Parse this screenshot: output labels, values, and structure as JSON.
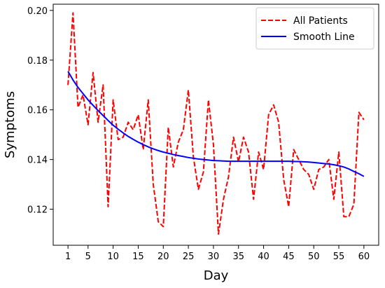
{
  "chart_data": {
    "type": "line",
    "title": "",
    "xlabel": "Day",
    "ylabel": "Symptoms",
    "xlim": [
      -1.95,
      62.95
    ],
    "ylim": [
      0.1055,
      0.2025
    ],
    "xticks": [
      1,
      5,
      10,
      15,
      20,
      25,
      30,
      35,
      40,
      45,
      50,
      55,
      60
    ],
    "yticks": [
      0.12,
      0.14,
      0.16,
      0.18,
      0.2
    ],
    "ytick_labels": [
      "0.12",
      "0.14",
      "0.16",
      "0.18",
      "0.20"
    ],
    "grid": false,
    "legend_position": "top-right",
    "series": [
      {
        "name": "All Patients",
        "style": "dashed",
        "color": "#ff0000",
        "x": [
          1,
          2,
          3,
          4,
          5,
          6,
          7,
          8,
          9,
          10,
          11,
          12,
          13,
          14,
          15,
          16,
          17,
          18,
          19,
          20,
          21,
          22,
          23,
          24,
          25,
          26,
          27,
          28,
          29,
          30,
          31,
          32,
          33,
          34,
          35,
          36,
          37,
          38,
          39,
          40,
          41,
          42,
          43,
          44,
          45,
          46,
          47,
          48,
          49,
          50,
          51,
          52,
          53,
          54,
          55,
          56,
          57,
          58,
          59,
          60
        ],
        "y": [
          0.17,
          0.199,
          0.161,
          0.166,
          0.154,
          0.175,
          0.155,
          0.17,
          0.121,
          0.164,
          0.148,
          0.149,
          0.155,
          0.152,
          0.158,
          0.144,
          0.164,
          0.13,
          0.115,
          0.113,
          0.153,
          0.137,
          0.147,
          0.152,
          0.168,
          0.141,
          0.128,
          0.135,
          0.164,
          0.146,
          0.11,
          0.124,
          0.133,
          0.149,
          0.139,
          0.149,
          0.143,
          0.124,
          0.143,
          0.136,
          0.158,
          0.162,
          0.155,
          0.132,
          0.121,
          0.144,
          0.14,
          0.136,
          0.134,
          0.128,
          0.136,
          0.137,
          0.14,
          0.124,
          0.143,
          0.117,
          0.117,
          0.122,
          0.159,
          0.156
        ]
      },
      {
        "name": "Smooth Line",
        "style": "solid",
        "color": "#0000ff",
        "x": [
          1,
          2,
          3,
          4,
          5,
          6,
          7,
          8,
          9,
          10,
          11,
          12,
          13,
          14,
          15,
          16,
          17,
          18,
          19,
          20,
          21,
          22,
          23,
          24,
          25,
          26,
          27,
          28,
          29,
          30,
          31,
          32,
          33,
          34,
          35,
          36,
          37,
          38,
          39,
          40,
          41,
          42,
          43,
          44,
          45,
          46,
          47,
          48,
          49,
          50,
          51,
          52,
          53,
          54,
          55,
          56,
          57,
          58,
          59,
          60
        ],
        "y": [
          0.1755,
          0.172,
          0.169,
          0.1665,
          0.164,
          0.1618,
          0.1597,
          0.1577,
          0.1557,
          0.1538,
          0.1522,
          0.1507,
          0.1493,
          0.1481,
          0.147,
          0.146,
          0.1451,
          0.1443,
          0.1436,
          0.143,
          0.1425,
          0.142,
          0.1416,
          0.1412,
          0.1408,
          0.1405,
          0.1402,
          0.14,
          0.1398,
          0.1396,
          0.1395,
          0.1394,
          0.1393,
          0.1393,
          0.1393,
          0.1393,
          0.1393,
          0.1393,
          0.1393,
          0.1393,
          0.1393,
          0.1393,
          0.1393,
          0.1393,
          0.1393,
          0.1392,
          0.1392,
          0.1391,
          0.139,
          0.1388,
          0.1386,
          0.1384,
          0.1382,
          0.1379,
          0.1375,
          0.137,
          0.1362,
          0.1352,
          0.1343,
          0.1332
        ]
      }
    ]
  }
}
